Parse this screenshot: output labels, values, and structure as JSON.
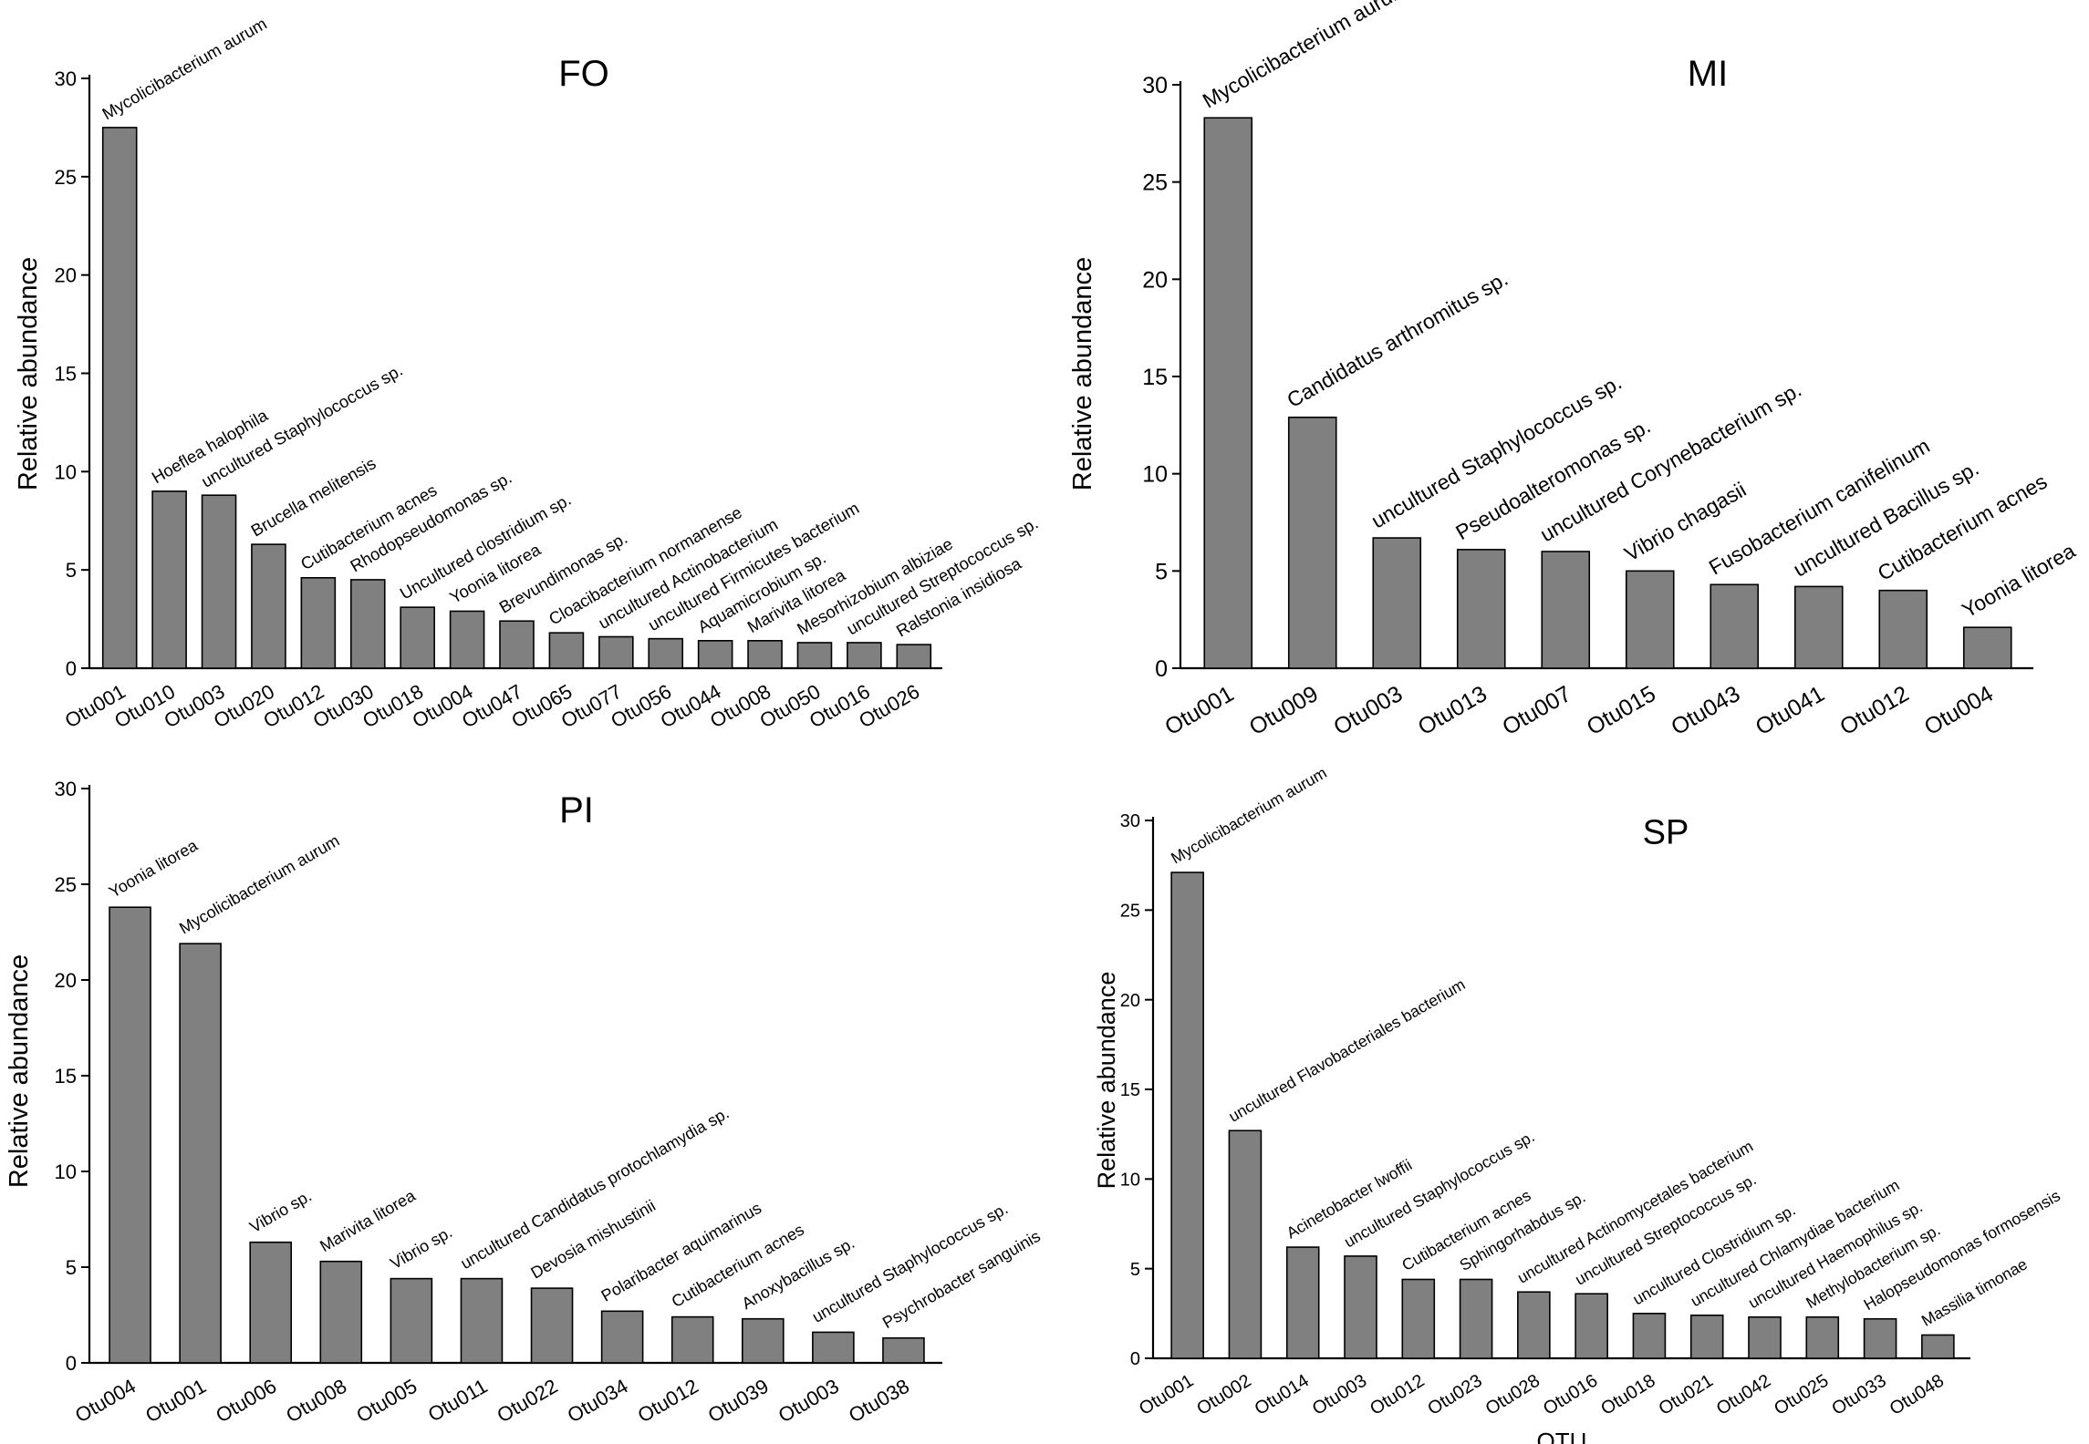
{
  "chart_data": [
    {
      "type": "bar",
      "title": "FO",
      "ylabel": "Relative abundance",
      "xlabel": "",
      "ylim": [
        0,
        30
      ],
      "yticks": [
        0,
        5,
        10,
        15,
        20,
        25,
        30
      ],
      "categories": [
        "Otu001",
        "Otu010",
        "Otu003",
        "Otu020",
        "Otu012",
        "Otu030",
        "Otu018",
        "Otu004",
        "Otu047",
        "Otu065",
        "Otu077",
        "Otu056",
        "Otu044",
        "Otu008",
        "Otu050",
        "Otu016",
        "Otu026"
      ],
      "labels": [
        "Mycolicibacterium aurum",
        "Hoeflea halophila",
        "uncultured Staphylococcus sp.",
        "Brucella melitensis",
        "Cutibacterium acnes",
        "Rhodopseudomonas sp.",
        "Uncultured clostridium sp.",
        "Yoonia litorea",
        "Brevundimonas sp.",
        "Cloacibacterium normanense",
        "uncultured Actinobacterium",
        "uncultured Firmicutes bacterium",
        "Aquamicrobium sp.",
        "Marivita litorea",
        "Mesorhizobium albiziae",
        "uncultured Streptococcus sp.",
        "Ralstonia insidiosa"
      ],
      "values": [
        27.5,
        9.0,
        8.8,
        6.3,
        4.6,
        4.5,
        3.1,
        2.9,
        2.4,
        1.8,
        1.6,
        1.5,
        1.4,
        1.4,
        1.3,
        1.3,
        1.2
      ]
    },
    {
      "type": "bar",
      "title": "MI",
      "ylabel": "Relative abundance",
      "xlabel": "",
      "ylim": [
        0,
        30
      ],
      "yticks": [
        0,
        5,
        10,
        15,
        20,
        25,
        30
      ],
      "categories": [
        "Otu001",
        "Otu009",
        "Otu003",
        "Otu013",
        "Otu007",
        "Otu015",
        "Otu043",
        "Otu041",
        "Otu012",
        "Otu004"
      ],
      "labels": [
        "Mycolicibacterium aurum",
        "Candidatus arthromitus sp.",
        "uncultured Staphylococcus sp.",
        "Pseudoalteromonas sp.",
        "uncultured Corynebacterium sp.",
        "Vibrio chagasii",
        "Fusobacterium canifelinum",
        "uncultured Bacillus sp.",
        "Cutibacterium acnes",
        "Yoonia litorea"
      ],
      "values": [
        28.3,
        12.9,
        6.7,
        6.1,
        6.0,
        5.0,
        4.3,
        4.2,
        4.0,
        2.1
      ]
    },
    {
      "type": "bar",
      "title": "PI",
      "ylabel": "Relative abundance",
      "xlabel": "",
      "ylim": [
        0,
        30
      ],
      "yticks": [
        0,
        5,
        10,
        15,
        20,
        25,
        30
      ],
      "categories": [
        "Otu004",
        "Otu001",
        "Otu006",
        "Otu008",
        "Otu005",
        "Otu011",
        "Otu022",
        "Otu034",
        "Otu012",
        "Otu039",
        "Otu003",
        "Otu038"
      ],
      "labels": [
        "Yoonia litorea",
        "Mycolicibacterium aurum",
        "Vibrio sp.",
        "Marivita litorea",
        "Vibrio sp.",
        "uncultured Candidatus protochlamydia sp.",
        "Devosia mishustinii",
        "Polaribacter aquimarinus",
        "Cutibacterium acnes",
        "Anoxybacillus sp.",
        "uncultured Staphylococcus sp.",
        "Psychrobacter sanguinis"
      ],
      "values": [
        23.8,
        21.9,
        6.3,
        5.3,
        4.4,
        4.4,
        3.9,
        2.7,
        2.4,
        2.3,
        1.6,
        1.3
      ]
    },
    {
      "type": "bar",
      "title": "SP",
      "ylabel": "Relative abundance",
      "xlabel": "OTU",
      "ylim": [
        0,
        30
      ],
      "yticks": [
        0,
        5,
        10,
        15,
        20,
        25,
        30
      ],
      "categories": [
        "Otu001",
        "Otu002",
        "Otu014",
        "Otu003",
        "Otu012",
        "Otu023",
        "Otu028",
        "Otu016",
        "Otu018",
        "Otu021",
        "Otu042",
        "Otu025",
        "Otu033",
        "Otu048"
      ],
      "labels": [
        "Mycolicibacterium aurum",
        "uncultured Flavobacteriales bacterium",
        "Acinetobacter lwoffii",
        "uncultured Staphylococcus sp.",
        "Cutibacterium acnes",
        "Sphingorhabdus sp.",
        "uncultured Actinomycetales bacterium",
        "uncultured Streptococcus sp.",
        "uncultured Clostridium sp.",
        "uncultured Chlamydiae bacterium",
        "uncultured Haemophilus sp.",
        "Methylobacterium sp.",
        "Halopseudomonas formosensis",
        "Massilia timonae"
      ],
      "values": [
        27.1,
        12.7,
        6.2,
        5.7,
        4.4,
        4.4,
        3.7,
        3.6,
        2.5,
        2.4,
        2.3,
        2.3,
        2.2,
        1.3
      ]
    }
  ]
}
